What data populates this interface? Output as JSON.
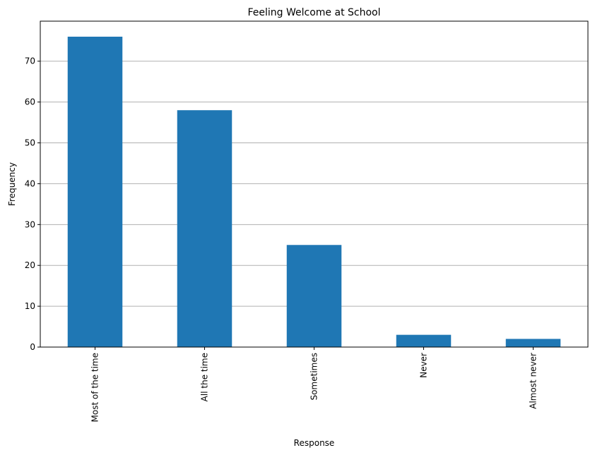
{
  "chart_data": {
    "type": "bar",
    "title": "Feeling Welcome at School",
    "xlabel": "Response",
    "ylabel": "Frequency",
    "categories": [
      "Most of the time",
      "All the time",
      "Sometimes",
      "Never",
      "Almost never"
    ],
    "values": [
      76,
      58,
      25,
      3,
      2
    ],
    "ylim": [
      0,
      79.8
    ],
    "yticks": [
      0,
      10,
      20,
      30,
      40,
      50,
      60,
      70
    ],
    "grid": "horizontal",
    "bar_color": "#1f77b4",
    "grid_color": "#b0b0b0"
  }
}
